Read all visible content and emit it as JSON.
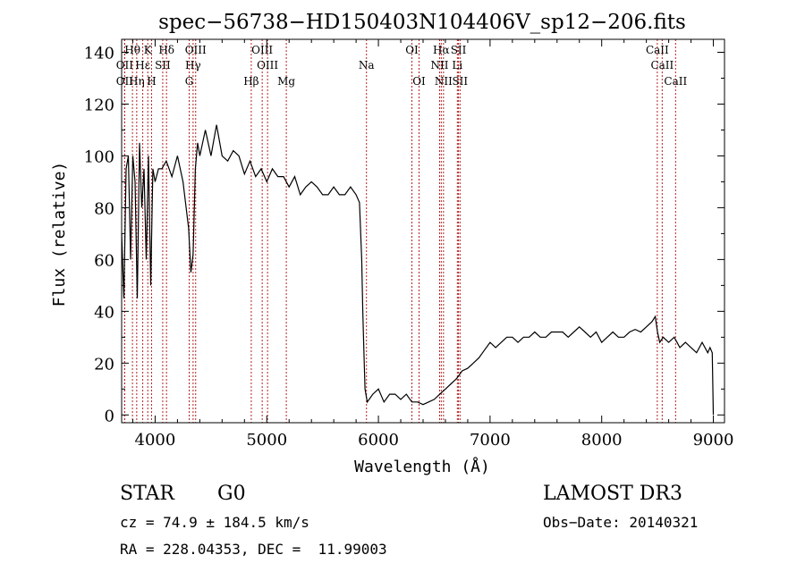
{
  "chart_data": {
    "type": "line",
    "title": "spec−56738−HD150403N104406V_sp12−206.fits",
    "xlabel": "Wavelength (Å)",
    "ylabel": "Flux (relative)",
    "xlim": [
      3700,
      9100
    ],
    "ylim": [
      -3,
      145
    ],
    "xticks": [
      4000,
      5000,
      6000,
      7000,
      8000,
      9000
    ],
    "yticks": [
      0,
      20,
      40,
      60,
      80,
      100,
      120,
      140
    ],
    "grid": false,
    "series": [
      {
        "name": "flux",
        "x": [
          3700,
          3720,
          3740,
          3760,
          3780,
          3800,
          3820,
          3840,
          3860,
          3880,
          3900,
          3920,
          3940,
          3960,
          3980,
          4000,
          4030,
          4060,
          4100,
          4150,
          4200,
          4250,
          4300,
          4320,
          4340,
          4360,
          4380,
          4400,
          4450,
          4500,
          4550,
          4600,
          4650,
          4700,
          4750,
          4800,
          4850,
          4900,
          4950,
          5000,
          5050,
          5100,
          5150,
          5200,
          5250,
          5300,
          5350,
          5400,
          5450,
          5500,
          5550,
          5600,
          5650,
          5700,
          5750,
          5800,
          5830,
          5850,
          5860,
          5870,
          5880,
          5900,
          5950,
          6000,
          6050,
          6100,
          6150,
          6200,
          6250,
          6300,
          6350,
          6400,
          6450,
          6500,
          6550,
          6600,
          6650,
          6700,
          6750,
          6800,
          6850,
          6900,
          6950,
          7000,
          7050,
          7100,
          7150,
          7200,
          7250,
          7300,
          7350,
          7400,
          7450,
          7500,
          7550,
          7600,
          7650,
          7700,
          7750,
          7800,
          7850,
          7900,
          7950,
          8000,
          8050,
          8100,
          8150,
          8200,
          8250,
          8300,
          8350,
          8400,
          8450,
          8480,
          8500,
          8520,
          8550,
          8600,
          8650,
          8700,
          8750,
          8800,
          8850,
          8900,
          8950,
          8970,
          8990,
          9000
        ],
        "values": [
          70,
          45,
          95,
          100,
          60,
          100,
          90,
          45,
          105,
          80,
          95,
          60,
          100,
          50,
          95,
          90,
          95,
          95,
          98,
          92,
          100,
          90,
          72,
          55,
          62,
          95,
          105,
          100,
          110,
          100,
          112,
          100,
          98,
          102,
          100,
          93,
          98,
          92,
          95,
          90,
          95,
          92,
          92,
          88,
          92,
          85,
          88,
          90,
          88,
          85,
          85,
          88,
          85,
          85,
          88,
          85,
          82,
          60,
          40,
          25,
          10,
          5,
          8,
          10,
          5,
          8,
          8,
          6,
          8,
          5,
          5,
          4,
          5,
          6,
          8,
          10,
          12,
          14,
          17,
          18,
          20,
          22,
          25,
          28,
          26,
          28,
          30,
          30,
          28,
          30,
          30,
          32,
          30,
          30,
          32,
          32,
          32,
          30,
          32,
          34,
          32,
          30,
          32,
          28,
          30,
          32,
          30,
          30,
          32,
          33,
          32,
          34,
          36,
          38,
          32,
          28,
          30,
          28,
          30,
          26,
          28,
          26,
          24,
          28,
          24,
          26,
          24,
          0
        ]
      }
    ],
    "spectral_lines": [
      {
        "name": "Hθ",
        "wavelength": 3797,
        "row": 0
      },
      {
        "name": "K",
        "wavelength": 3934,
        "row": 0
      },
      {
        "name": "Hδ",
        "wavelength": 4102,
        "row": 0
      },
      {
        "name": "OIII",
        "wavelength": 4363,
        "row": 0
      },
      {
        "name": "OIII",
        "wavelength": 4959,
        "row": 0
      },
      {
        "name": "OI",
        "wavelength": 6300,
        "row": 0
      },
      {
        "name": "Hα",
        "wavelength": 6563,
        "row": 0
      },
      {
        "name": "SII",
        "wavelength": 6717,
        "row": 0
      },
      {
        "name": "CaII",
        "wavelength": 8498,
        "row": 0
      },
      {
        "name": "OII",
        "wavelength": 3727,
        "row": 1
      },
      {
        "name": "Hε",
        "wavelength": 3889,
        "row": 1
      },
      {
        "name": "SII",
        "wavelength": 4068,
        "row": 1
      },
      {
        "name": "Hγ",
        "wavelength": 4340,
        "row": 1
      },
      {
        "name": "OIII",
        "wavelength": 5007,
        "row": 1
      },
      {
        "name": "Na",
        "wavelength": 5893,
        "row": 1
      },
      {
        "name": "NII",
        "wavelength": 6548,
        "row": 1
      },
      {
        "name": "Li",
        "wavelength": 6707,
        "row": 1
      },
      {
        "name": "CaII",
        "wavelength": 8542,
        "row": 1
      },
      {
        "name": "OII",
        "wavelength": 3727,
        "row": 2
      },
      {
        "name": "Hη",
        "wavelength": 3835,
        "row": 2
      },
      {
        "name": "H",
        "wavelength": 3968,
        "row": 2
      },
      {
        "name": "G",
        "wavelength": 4305,
        "row": 2
      },
      {
        "name": "Hβ",
        "wavelength": 4861,
        "row": 2
      },
      {
        "name": "Mg",
        "wavelength": 5175,
        "row": 2
      },
      {
        "name": "OI",
        "wavelength": 6364,
        "row": 2
      },
      {
        "name": "NII",
        "wavelength": 6583,
        "row": 2
      },
      {
        "name": "SII",
        "wavelength": 6731,
        "row": 2
      },
      {
        "name": "CaII",
        "wavelength": 8662,
        "row": 2
      }
    ]
  },
  "info": {
    "class_label": "STAR",
    "subclass": "G0",
    "survey": "LAMOST DR3",
    "redshift": "cz = 74.9 ± 184.5 km/s",
    "obs_date": "Obs−Date: 20140321",
    "coords": "RA = 228.04353, DEC =  11.99003"
  },
  "colors": {
    "line_marker": "#b22222",
    "spectrum": "#000000"
  }
}
